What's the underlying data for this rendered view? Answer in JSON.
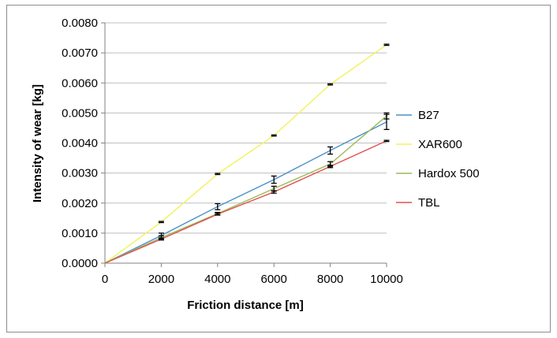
{
  "chart_data": {
    "type": "line",
    "title": "",
    "xlabel": "Friction distance [m]",
    "ylabel": "Intensity of wear  [kg]",
    "x": [
      0,
      2000,
      4000,
      6000,
      8000,
      10000
    ],
    "xlim": [
      0,
      10000
    ],
    "ylim": [
      0,
      0.008
    ],
    "x_ticks": [
      0,
      2000,
      4000,
      6000,
      8000,
      10000
    ],
    "y_ticks": [
      0.0,
      0.001,
      0.002,
      0.003,
      0.004,
      0.005,
      0.006,
      0.007,
      0.008
    ],
    "x_tick_labels": [
      "0",
      "2000",
      "4000",
      "6000",
      "8000",
      "10000"
    ],
    "y_tick_labels": [
      "0.0000",
      "0.0010",
      "0.0020",
      "0.0030",
      "0.0040",
      "0.0050",
      "0.0060",
      "0.0070",
      "0.0080"
    ],
    "grid": "horizontal",
    "legend_position": "right",
    "error_bars": true,
    "series": [
      {
        "name": "B27",
        "color": "#4a90c8",
        "values": [
          0,
          0.00092,
          0.00188,
          0.00278,
          0.00375,
          0.0047
        ],
        "errors": [
          0,
          8e-05,
          0.0001,
          0.00012,
          0.00012,
          0.00025
        ]
      },
      {
        "name": "XAR600",
        "color": "#f2f25a",
        "values": [
          0,
          0.00137,
          0.00297,
          0.00425,
          0.00595,
          0.00727
        ],
        "errors": [
          0,
          2e-05,
          2e-05,
          2e-05,
          2e-05,
          2e-05
        ]
      },
      {
        "name": "Hardox 500",
        "color": "#9bbb59",
        "values": [
          0,
          0.00085,
          0.00165,
          0.00248,
          0.0033,
          0.0049
        ],
        "errors": [
          0,
          6e-05,
          4e-05,
          8e-05,
          8e-05,
          0.0001
        ]
      },
      {
        "name": "TBL",
        "color": "#e0504a",
        "values": [
          0,
          0.0008,
          0.00163,
          0.00237,
          0.00322,
          0.00407
        ],
        "errors": [
          0,
          3e-05,
          3e-05,
          4e-05,
          4e-05,
          2e-05
        ]
      }
    ]
  }
}
